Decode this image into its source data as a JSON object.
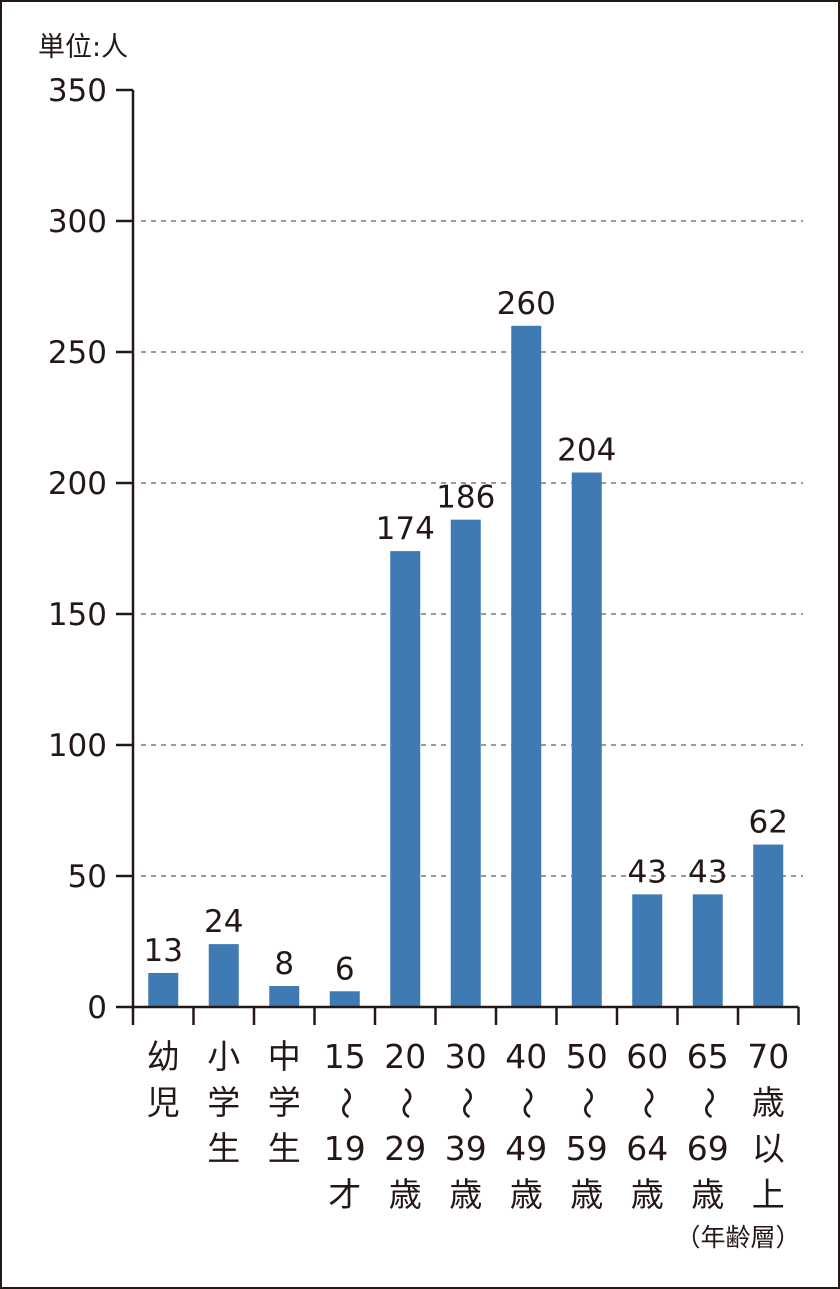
{
  "chart_data": {
    "type": "bar",
    "unit_label": "単位:人",
    "xlabel_note": "（年齢層）",
    "categories": [
      [
        "幼",
        "児"
      ],
      [
        "小",
        "学",
        "生"
      ],
      [
        "中",
        "学",
        "生"
      ],
      [
        "15",
        "〜",
        "19",
        "才"
      ],
      [
        "20",
        "〜",
        "29",
        "歳"
      ],
      [
        "30",
        "〜",
        "39",
        "歳"
      ],
      [
        "40",
        "〜",
        "49",
        "歳"
      ],
      [
        "50",
        "〜",
        "59",
        "歳"
      ],
      [
        "60",
        "〜",
        "64",
        "歳"
      ],
      [
        "65",
        "〜",
        "69",
        "歳"
      ],
      [
        "70",
        "歳",
        "以",
        "上"
      ]
    ],
    "values": [
      13,
      24,
      8,
      6,
      174,
      186,
      260,
      204,
      43,
      43,
      62
    ],
    "ylim": [
      0,
      350
    ],
    "yticks": [
      "0",
      "50",
      "100",
      "150",
      "200",
      "250",
      "300",
      "350"
    ],
    "grid": true,
    "bar_color": "#3f7ab4",
    "grid_color": "#9a9a9a",
    "axis_color": "#231815"
  }
}
